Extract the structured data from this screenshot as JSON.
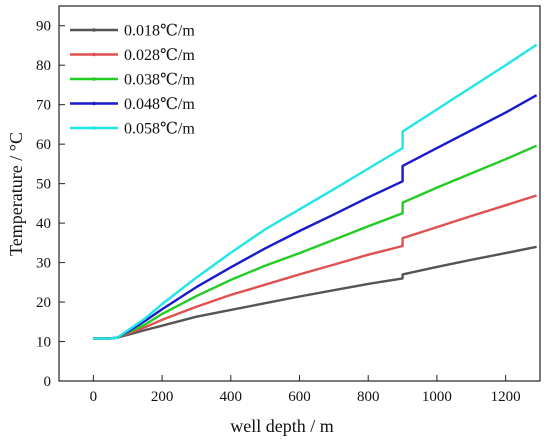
{
  "chart_data": {
    "type": "line",
    "xlabel": "well depth / m",
    "ylabel": "Temperature / °C",
    "xlim": [
      -100,
      1300
    ],
    "ylim": [
      0,
      95
    ],
    "xticks": [
      0,
      200,
      400,
      600,
      800,
      1000,
      1200
    ],
    "yticks": [
      0,
      10,
      20,
      30,
      40,
      50,
      60,
      70,
      80,
      90
    ],
    "legend_position": "top-left",
    "series": [
      {
        "name": "0.018℃/m",
        "color": "#555555",
        "x": [
          0,
          50,
          70,
          100,
          150,
          200,
          300,
          400,
          500,
          600,
          700,
          800,
          900,
          900,
          1000,
          1100,
          1200,
          1290
        ],
        "y": [
          10.8,
          10.8,
          11.0,
          11.7,
          12.9,
          14.0,
          16.3,
          18.0,
          19.7,
          21.4,
          23.0,
          24.6,
          26.0,
          27.0,
          28.9,
          30.7,
          32.4,
          34.0
        ]
      },
      {
        "name": "0.028℃/m",
        "color": "#e05050",
        "x": [
          0,
          50,
          70,
          100,
          150,
          200,
          300,
          400,
          500,
          600,
          700,
          800,
          900,
          900,
          1000,
          1100,
          1200,
          1290
        ],
        "y": [
          10.8,
          10.8,
          11.0,
          12.0,
          13.6,
          15.5,
          18.8,
          21.8,
          24.4,
          27.0,
          29.5,
          32.0,
          34.2,
          36.2,
          39.0,
          41.8,
          44.5,
          47.0
        ]
      },
      {
        "name": "0.038℃/m",
        "color": "#22cc22",
        "x": [
          0,
          50,
          70,
          100,
          150,
          200,
          300,
          400,
          500,
          600,
          700,
          800,
          900,
          900,
          1000,
          1100,
          1200,
          1290
        ],
        "y": [
          10.8,
          10.8,
          11.0,
          12.3,
          14.3,
          17.0,
          21.5,
          25.6,
          29.2,
          32.4,
          35.8,
          39.2,
          42.5,
          45.2,
          49.0,
          52.6,
          56.2,
          59.6
        ]
      },
      {
        "name": "0.048℃/m",
        "color": "#1a1acc",
        "x": [
          0,
          50,
          70,
          100,
          150,
          200,
          300,
          400,
          500,
          600,
          700,
          800,
          900,
          900,
          1000,
          1100,
          1200,
          1290
        ],
        "y": [
          10.8,
          10.8,
          11.0,
          12.5,
          15.2,
          18.2,
          23.8,
          28.8,
          33.6,
          38.0,
          42.2,
          46.5,
          50.6,
          54.5,
          59.0,
          63.5,
          68.0,
          72.4
        ]
      },
      {
        "name": "0.058℃/m",
        "color": "#22e6e6",
        "x": [
          0,
          50,
          70,
          100,
          150,
          200,
          300,
          400,
          500,
          600,
          700,
          800,
          900,
          900,
          1000,
          1100,
          1200,
          1290
        ],
        "y": [
          10.8,
          10.8,
          11.0,
          12.8,
          15.8,
          19.5,
          26.2,
          32.5,
          38.4,
          43.5,
          48.6,
          53.8,
          59.0,
          63.2,
          68.8,
          74.4,
          80.0,
          85.2
        ]
      }
    ]
  }
}
